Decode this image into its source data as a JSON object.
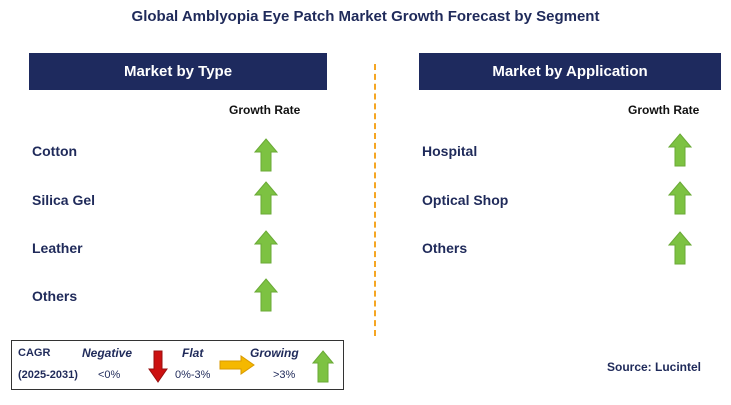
{
  "title": "Global Amblyopia Eye Patch Market Growth Forecast by Segment",
  "left_panel": {
    "header": "Market by Type",
    "growth_rate_label": "Growth Rate",
    "items": [
      {
        "label": "Cotton",
        "trend": "growing"
      },
      {
        "label": "Silica Gel",
        "trend": "growing"
      },
      {
        "label": "Leather",
        "trend": "growing"
      },
      {
        "label": "Others",
        "trend": "growing"
      }
    ]
  },
  "right_panel": {
    "header": "Market by Application",
    "growth_rate_label": "Growth Rate",
    "items": [
      {
        "label": "Hospital",
        "trend": "growing"
      },
      {
        "label": "Optical Shop",
        "trend": "growing"
      },
      {
        "label": "Others",
        "trend": "growing"
      }
    ]
  },
  "legend": {
    "cagr_label": "CAGR",
    "period": "(2025-2031)",
    "negative_label": "Negative",
    "negative_range": "<0%",
    "flat_label": "Flat",
    "flat_range": "0%-3%",
    "growing_label": "Growing",
    "growing_range": ">3%"
  },
  "source": "Source: Lucintel",
  "colors": {
    "header_bg": "#1e2a5e",
    "growing": "#7dc242",
    "negative": "#cc1111",
    "flat": "#f5b800",
    "divider": "#f5a623"
  }
}
